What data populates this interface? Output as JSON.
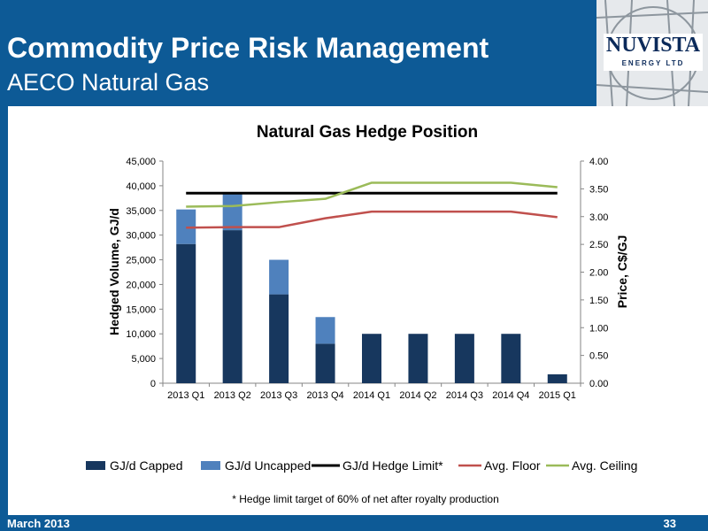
{
  "slide": {
    "title": "Commodity Price Risk Management",
    "subtitle": "AECO Natural Gas",
    "footer_left": "March 2013",
    "page_number": "33",
    "logo_text": "NUVISTA",
    "logo_subtext": "ENERGY LTD",
    "colors": {
      "brand_blue": "#0d5a96",
      "logo_navy": "#0b2a5a"
    }
  },
  "chart_data": {
    "type": "bar",
    "title": "Natural Gas Hedge Position",
    "categories": [
      "2013 Q1",
      "2013 Q2",
      "2013 Q3",
      "2013 Q4",
      "2014 Q1",
      "2014 Q2",
      "2014 Q3",
      "2014 Q4",
      "2015 Q1"
    ],
    "stacked": true,
    "series": [
      {
        "name": "GJ/d Capped",
        "kind": "bar",
        "axis": "left",
        "color": "#17375e",
        "values": [
          28200,
          31000,
          18000,
          8000,
          10000,
          10000,
          10000,
          10000,
          1800
        ]
      },
      {
        "name": "GJ/d Uncapped",
        "kind": "bar",
        "axis": "left",
        "color": "#4f81bd",
        "values": [
          7000,
          7700,
          7000,
          5400,
          0,
          0,
          0,
          0,
          0
        ]
      },
      {
        "name": "GJ/d Hedge Limit*",
        "kind": "line",
        "axis": "left",
        "color": "#000000",
        "values": [
          38500,
          38500,
          38500,
          38500,
          38500,
          38500,
          38500,
          38500,
          38500
        ]
      },
      {
        "name": "Avg. Floor",
        "kind": "line",
        "axis": "right",
        "color": "#c0504d",
        "values": [
          2.8,
          2.81,
          2.81,
          2.97,
          3.09,
          3.09,
          3.09,
          3.09,
          2.99
        ]
      },
      {
        "name": "Avg. Ceiling",
        "kind": "line",
        "axis": "right",
        "color": "#9bbb59",
        "values": [
          3.18,
          3.19,
          3.26,
          3.32,
          3.61,
          3.61,
          3.61,
          3.61,
          3.53
        ]
      }
    ],
    "ylabel": "Hedged Volume, GJ/d",
    "ylabel_right": "Price, C$/GJ",
    "ylim": [
      0,
      45000
    ],
    "y_ticks": [
      "0",
      "5,000",
      "10,000",
      "15,000",
      "20,000",
      "25,000",
      "30,000",
      "35,000",
      "40,000",
      "45,000"
    ],
    "ylim_right": [
      0,
      4
    ],
    "y_ticks_right": [
      "0.00",
      "0.50",
      "1.00",
      "1.50",
      "2.00",
      "2.50",
      "3.00",
      "3.50",
      "4.00"
    ],
    "grid": false,
    "legend_position": "bottom",
    "footnote": "* Hedge limit target of 60% of net after royalty production"
  }
}
